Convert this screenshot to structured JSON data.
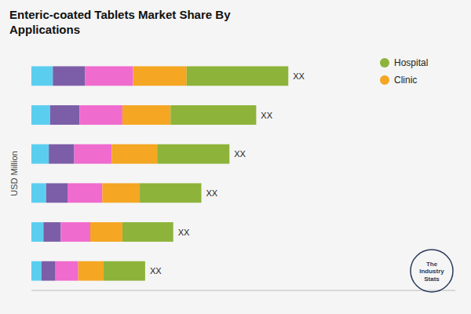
{
  "chart_data": {
    "type": "bar",
    "orientation": "horizontal",
    "stacked": true,
    "title": "Enteric-coated Tablets Market Share By\nApplications",
    "ylabel": "USD Million",
    "categories": [
      null,
      null,
      null,
      null,
      null,
      null
    ],
    "series": [
      {
        "color": "#5bcef0",
        "values": [
          0.8,
          0.7,
          0.65,
          0.55,
          0.45,
          0.38
        ]
      },
      {
        "color": "#7b5ea7",
        "values": [
          1.2,
          1.1,
          0.95,
          0.8,
          0.65,
          0.52
        ]
      },
      {
        "color": "#f06bce",
        "values": [
          1.8,
          1.6,
          1.4,
          1.3,
          1.1,
          0.85
        ]
      },
      {
        "name": "Clinic",
        "color": "#f5a623",
        "values": [
          2.0,
          1.8,
          1.7,
          1.4,
          1.2,
          0.95
        ]
      },
      {
        "name": "Hospital",
        "color": "#8db33a",
        "values": [
          3.8,
          3.2,
          2.7,
          2.3,
          1.9,
          1.55
        ]
      }
    ],
    "xlim": [
      0,
      15.84
    ],
    "tick_labels": false,
    "grid": false,
    "legend": "upper right",
    "annotation": "XX",
    "logo_text": "The\nIndustry\nStats"
  }
}
